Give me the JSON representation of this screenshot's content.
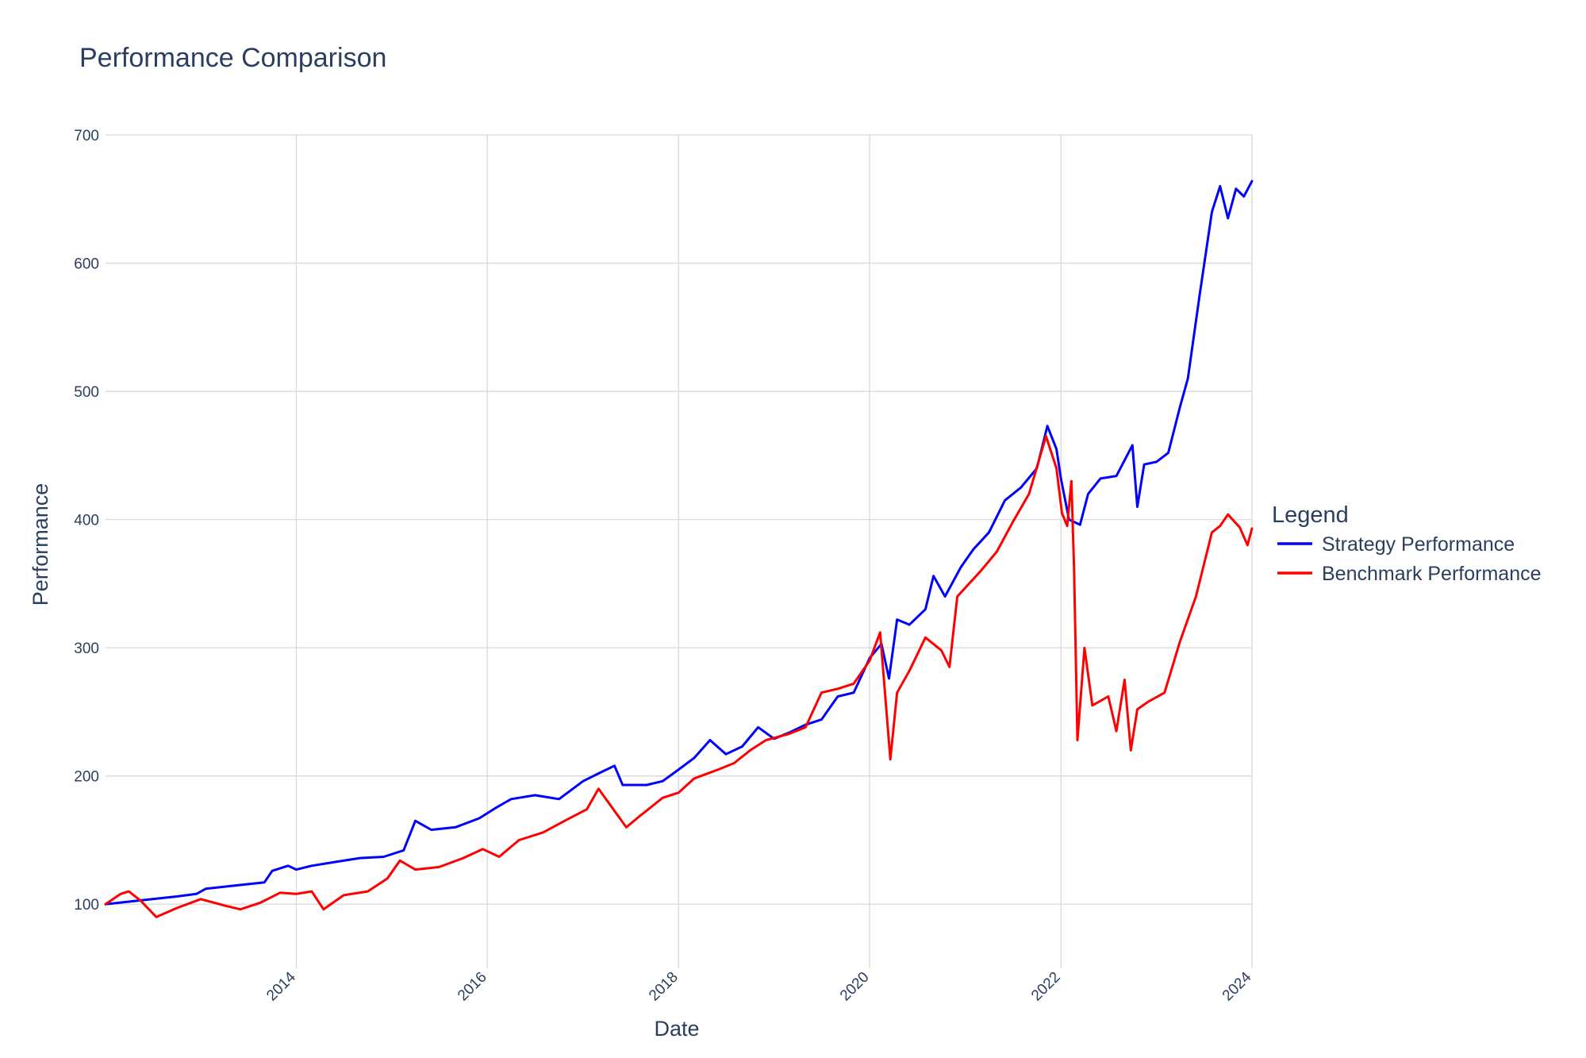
{
  "chart_data": {
    "type": "line",
    "title": "Performance Comparison",
    "xlabel": "Date",
    "ylabel": "Performance",
    "xlim": [
      "2012-01-03",
      "2024-01-01"
    ],
    "ylim": [
      50,
      700
    ],
    "x_ticks": [
      "2014",
      "2016",
      "2018",
      "2020",
      "2022",
      "2024"
    ],
    "y_ticks": [
      100,
      200,
      300,
      400,
      500,
      600,
      700
    ],
    "grid": true,
    "legend": {
      "title": "Legend",
      "placement": "right"
    },
    "series": [
      {
        "name": "Strategy Performance",
        "color": "#0000ff",
        "points": [
          [
            "2012-01-03",
            100
          ],
          [
            "2012-04-01",
            102
          ],
          [
            "2012-07-01",
            104
          ],
          [
            "2012-10-01",
            106
          ],
          [
            "2012-12-15",
            108
          ],
          [
            "2013-01-20",
            112
          ],
          [
            "2013-06-01",
            115
          ],
          [
            "2013-09-01",
            117
          ],
          [
            "2013-10-01",
            126
          ],
          [
            "2013-12-01",
            130
          ],
          [
            "2014-01-01",
            127
          ],
          [
            "2014-03-01",
            130
          ],
          [
            "2014-06-01",
            133
          ],
          [
            "2014-09-01",
            136
          ],
          [
            "2014-12-01",
            137
          ],
          [
            "2015-02-15",
            142
          ],
          [
            "2015-04-01",
            165
          ],
          [
            "2015-06-01",
            158
          ],
          [
            "2015-09-01",
            160
          ],
          [
            "2015-12-01",
            167
          ],
          [
            "2016-02-01",
            175
          ],
          [
            "2016-04-01",
            182
          ],
          [
            "2016-07-01",
            185
          ],
          [
            "2016-10-01",
            182
          ],
          [
            "2017-01-01",
            196
          ],
          [
            "2017-03-01",
            202
          ],
          [
            "2017-05-01",
            208
          ],
          [
            "2017-06-01",
            193
          ],
          [
            "2017-09-01",
            193
          ],
          [
            "2017-11-01",
            196
          ],
          [
            "2018-01-01",
            205
          ],
          [
            "2018-03-01",
            214
          ],
          [
            "2018-05-01",
            228
          ],
          [
            "2018-07-01",
            217
          ],
          [
            "2018-09-01",
            223
          ],
          [
            "2018-11-01",
            238
          ],
          [
            "2019-01-01",
            229
          ],
          [
            "2019-03-01",
            234
          ],
          [
            "2019-05-01",
            240
          ],
          [
            "2019-07-01",
            244
          ],
          [
            "2019-09-01",
            262
          ],
          [
            "2019-11-01",
            265
          ],
          [
            "2020-01-01",
            292
          ],
          [
            "2020-02-15",
            303
          ],
          [
            "2020-03-15",
            276
          ],
          [
            "2020-04-15",
            322
          ],
          [
            "2020-06-01",
            318
          ],
          [
            "2020-08-01",
            330
          ],
          [
            "2020-09-01",
            356
          ],
          [
            "2020-10-15",
            340
          ],
          [
            "2020-12-15",
            363
          ],
          [
            "2021-02-01",
            377
          ],
          [
            "2021-04-01",
            390
          ],
          [
            "2021-06-01",
            415
          ],
          [
            "2021-08-01",
            425
          ],
          [
            "2021-10-01",
            440
          ],
          [
            "2021-11-10",
            473
          ],
          [
            "2021-12-15",
            455
          ],
          [
            "2022-01-01",
            432
          ],
          [
            "2022-02-01",
            400
          ],
          [
            "2022-03-15",
            396
          ],
          [
            "2022-04-15",
            420
          ],
          [
            "2022-06-01",
            432
          ],
          [
            "2022-08-01",
            434
          ],
          [
            "2022-10-01",
            458
          ],
          [
            "2022-10-20",
            410
          ],
          [
            "2022-11-15",
            443
          ],
          [
            "2023-01-01",
            445
          ],
          [
            "2023-02-15",
            452
          ],
          [
            "2023-04-01",
            488
          ],
          [
            "2023-05-01",
            510
          ],
          [
            "2023-06-15",
            575
          ],
          [
            "2023-08-01",
            640
          ],
          [
            "2023-09-01",
            660
          ],
          [
            "2023-10-01",
            635
          ],
          [
            "2023-11-01",
            658
          ],
          [
            "2023-12-01",
            652
          ],
          [
            "2024-01-01",
            664
          ]
        ]
      },
      {
        "name": "Benchmark Performance",
        "color": "#ff0000",
        "points": [
          [
            "2012-01-03",
            100
          ],
          [
            "2012-03-01",
            108
          ],
          [
            "2012-04-01",
            110
          ],
          [
            "2012-05-15",
            103
          ],
          [
            "2012-07-15",
            90
          ],
          [
            "2012-10-01",
            97
          ],
          [
            "2013-01-01",
            104
          ],
          [
            "2013-04-01",
            99
          ],
          [
            "2013-06-01",
            96
          ],
          [
            "2013-08-15",
            101
          ],
          [
            "2013-11-01",
            109
          ],
          [
            "2014-01-01",
            108
          ],
          [
            "2014-03-01",
            110
          ],
          [
            "2014-04-15",
            96
          ],
          [
            "2014-07-01",
            107
          ],
          [
            "2014-10-01",
            110
          ],
          [
            "2014-12-15",
            120
          ],
          [
            "2015-02-01",
            134
          ],
          [
            "2015-04-01",
            127
          ],
          [
            "2015-07-01",
            129
          ],
          [
            "2015-10-01",
            136
          ],
          [
            "2015-12-15",
            143
          ],
          [
            "2016-02-15",
            137
          ],
          [
            "2016-05-01",
            150
          ],
          [
            "2016-08-01",
            156
          ],
          [
            "2016-11-01",
            166
          ],
          [
            "2017-01-15",
            174
          ],
          [
            "2017-03-01",
            190
          ],
          [
            "2017-06-15",
            160
          ],
          [
            "2017-08-01",
            168
          ],
          [
            "2017-11-01",
            183
          ],
          [
            "2018-01-01",
            187
          ],
          [
            "2018-03-01",
            198
          ],
          [
            "2018-06-01",
            205
          ],
          [
            "2018-08-01",
            210
          ],
          [
            "2018-10-01",
            220
          ],
          [
            "2018-12-01",
            228
          ],
          [
            "2019-03-01",
            233
          ],
          [
            "2019-05-01",
            238
          ],
          [
            "2019-07-01",
            265
          ],
          [
            "2019-09-01",
            268
          ],
          [
            "2019-11-01",
            272
          ],
          [
            "2020-01-01",
            290
          ],
          [
            "2020-02-10",
            312
          ],
          [
            "2020-03-20",
            213
          ],
          [
            "2020-04-15",
            265
          ],
          [
            "2020-06-01",
            282
          ],
          [
            "2020-08-01",
            308
          ],
          [
            "2020-10-01",
            298
          ],
          [
            "2020-11-01",
            285
          ],
          [
            "2020-12-01",
            340
          ],
          [
            "2021-03-01",
            360
          ],
          [
            "2021-05-01",
            375
          ],
          [
            "2021-07-01",
            398
          ],
          [
            "2021-09-01",
            420
          ],
          [
            "2021-11-05",
            465
          ],
          [
            "2021-12-15",
            440
          ],
          [
            "2022-01-05",
            405
          ],
          [
            "2022-01-25",
            395
          ],
          [
            "2022-02-10",
            430
          ],
          [
            "2022-02-20",
            363
          ],
          [
            "2022-03-05",
            228
          ],
          [
            "2022-04-01",
            300
          ],
          [
            "2022-05-01",
            255
          ],
          [
            "2022-07-01",
            262
          ],
          [
            "2022-08-01",
            235
          ],
          [
            "2022-09-01",
            275
          ],
          [
            "2022-09-25",
            220
          ],
          [
            "2022-10-20",
            252
          ],
          [
            "2022-12-01",
            258
          ],
          [
            "2023-02-01",
            265
          ],
          [
            "2023-04-01",
            305
          ],
          [
            "2023-06-01",
            340
          ],
          [
            "2023-08-01",
            390
          ],
          [
            "2023-09-01",
            395
          ],
          [
            "2023-10-01",
            404
          ],
          [
            "2023-11-15",
            394
          ],
          [
            "2023-12-15",
            380
          ],
          [
            "2024-01-01",
            393
          ]
        ]
      }
    ]
  }
}
